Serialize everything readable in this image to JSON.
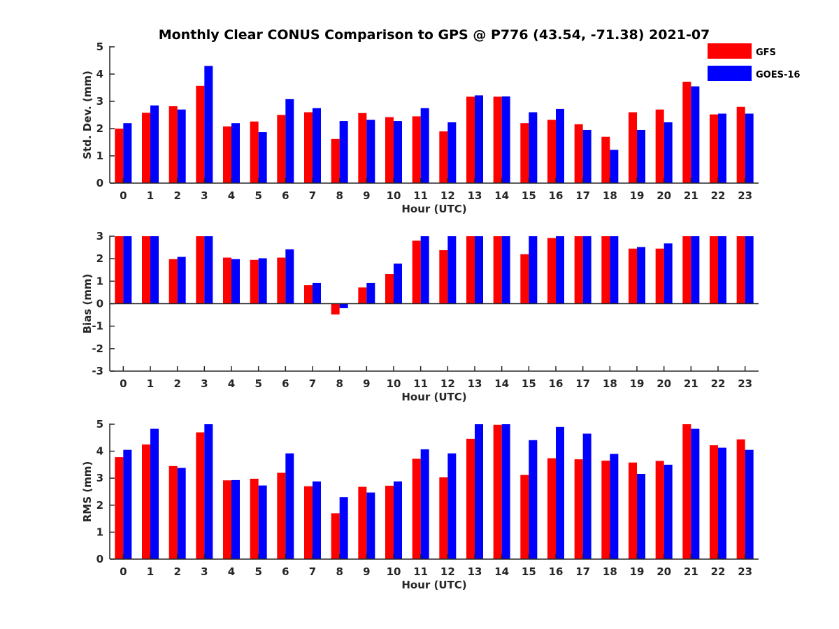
{
  "chart_data": {
    "type": "bar",
    "title": "Monthly Clear CONUS Comparison to GPS @ P776 (43.54, -71.38) 2021-07",
    "legend": {
      "placement": "top-right",
      "entries": [
        {
          "name": "GFS",
          "color": "#ff0000"
        },
        {
          "name": "GOES-16",
          "color": "#0000ff"
        }
      ]
    },
    "categories": [
      "0",
      "1",
      "2",
      "3",
      "4",
      "5",
      "6",
      "7",
      "8",
      "9",
      "10",
      "11",
      "12",
      "13",
      "14",
      "15",
      "16",
      "17",
      "18",
      "19",
      "20",
      "21",
      "22",
      "23"
    ],
    "panels": [
      {
        "id": "std",
        "ylabel": "Std. Dev. (mm)",
        "xlabel": "Hour (UTC)",
        "ylim": [
          0,
          5
        ],
        "yticks": [
          "0",
          "1",
          "2",
          "3",
          "4",
          "5"
        ],
        "series": [
          {
            "name": "GFS",
            "values": [
              2.0,
              2.58,
              2.82,
              3.57,
              2.08,
              2.26,
              2.5,
              2.6,
              1.62,
              2.57,
              2.42,
              2.45,
              1.9,
              3.17,
              3.17,
              2.2,
              2.32,
              2.16,
              1.7,
              2.6,
              2.7,
              3.72,
              2.52,
              2.8
            ]
          },
          {
            "name": "GOES-16",
            "values": [
              2.2,
              2.85,
              2.7,
              4.3,
              2.2,
              1.87,
              3.08,
              2.75,
              2.28,
              2.32,
              2.28,
              2.75,
              2.23,
              3.22,
              3.18,
              2.6,
              2.72,
              1.95,
              1.22,
              1.95,
              2.23,
              3.55,
              2.55,
              2.55
            ]
          }
        ]
      },
      {
        "id": "bias",
        "ylabel": "Bias (mm)",
        "xlabel": "Hour (UTC)",
        "ylim": [
          -3,
          3
        ],
        "yticks": [
          "-3",
          "-2",
          "-1",
          "0",
          "1",
          "2",
          "3"
        ],
        "series": [
          {
            "name": "GFS",
            "values": [
              3.0,
              3.0,
              1.98,
              3.0,
              2.05,
              1.95,
              2.05,
              0.82,
              -0.48,
              0.72,
              1.32,
              2.8,
              2.38,
              3.0,
              3.0,
              2.2,
              2.92,
              3.0,
              3.0,
              2.45,
              2.45,
              3.0,
              3.0,
              3.0
            ]
          },
          {
            "name": "GOES-16",
            "values": [
              3.0,
              3.0,
              2.08,
              3.0,
              1.98,
              2.02,
              2.42,
              0.92,
              -0.2,
              0.92,
              1.78,
              3.0,
              3.0,
              3.0,
              3.0,
              3.0,
              3.0,
              3.0,
              3.0,
              2.52,
              2.68,
              3.0,
              3.0,
              3.0
            ]
          }
        ]
      },
      {
        "id": "rms",
        "ylabel": "RMS (mm)",
        "xlabel": "Hour (UTC)",
        "ylim": [
          0,
          5
        ],
        "yticks": [
          "0",
          "1",
          "2",
          "3",
          "4",
          "5"
        ],
        "series": [
          {
            "name": "GFS",
            "values": [
              3.78,
              4.25,
              3.45,
              4.7,
              2.92,
              2.98,
              3.2,
              2.7,
              1.7,
              2.68,
              2.72,
              3.72,
              3.03,
              4.46,
              4.98,
              3.12,
              3.74,
              3.7,
              3.65,
              3.58,
              3.64,
              5.0,
              4.22,
              4.44
            ]
          },
          {
            "name": "GOES-16",
            "values": [
              4.05,
              4.83,
              3.38,
              5.0,
              2.93,
              2.73,
              3.92,
              2.88,
              2.3,
              2.47,
              2.88,
              4.07,
              3.92,
              5.0,
              5.0,
              4.41,
              4.9,
              4.65,
              3.9,
              3.16,
              3.5,
              4.83,
              4.13,
              4.05
            ]
          }
        ]
      }
    ]
  }
}
